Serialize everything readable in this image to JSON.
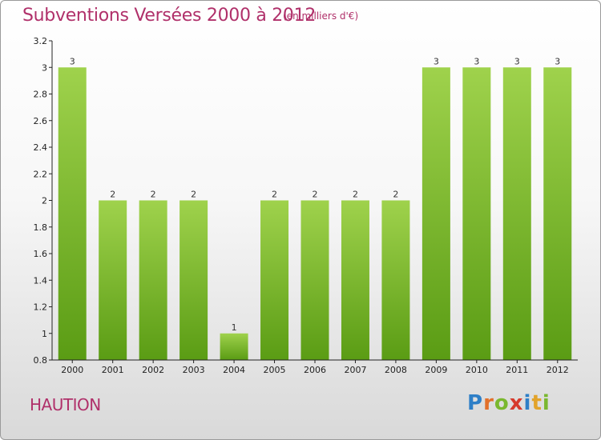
{
  "header": {
    "title": "Subventions Versées 2000 à 2012",
    "unit_note": "(en milliers d'€)"
  },
  "footer": {
    "place": "HAUTION",
    "logo": {
      "letters": [
        "P",
        "r",
        "o",
        "x",
        "i",
        "t",
        "i"
      ],
      "colors": [
        "#2e7fc7",
        "#e2702a",
        "#7ab82f",
        "#d63a2c",
        "#2e7fc7",
        "#e2a32a",
        "#7ab82f"
      ]
    }
  },
  "colors": {
    "title": "#b0306a",
    "bar_top": "#9fd24c",
    "bar_bottom": "#5a9c14",
    "axis": "#222222"
  },
  "chart_data": {
    "type": "bar",
    "title": "Subventions Versées 2000 à 2012",
    "subtitle": "(en milliers d'€)",
    "xlabel": "",
    "ylabel": "",
    "categories": [
      "2000",
      "2001",
      "2002",
      "2003",
      "2004",
      "2005",
      "2006",
      "2007",
      "2008",
      "2009",
      "2010",
      "2011",
      "2012"
    ],
    "values": [
      3,
      2,
      2,
      2,
      1,
      2,
      2,
      2,
      2,
      3,
      3,
      3,
      3
    ],
    "data_labels": [
      "3",
      "2",
      "2",
      "2",
      "1",
      "2",
      "2",
      "2",
      "2",
      "3",
      "3",
      "3",
      "3"
    ],
    "ylim": [
      0.8,
      3.2
    ],
    "yticks": [
      0.8,
      1,
      1.2,
      1.4,
      1.6,
      1.8,
      2,
      2.2,
      2.4,
      2.6,
      2.8,
      3,
      3.2
    ],
    "ytick_labels": [
      "0.8",
      "1",
      "1.2",
      "1.4",
      "1.6",
      "1.8",
      "2",
      "2.2",
      "2.4",
      "2.6",
      "2.8",
      "3",
      "3.2"
    ],
    "grid": false,
    "legend": "none"
  }
}
